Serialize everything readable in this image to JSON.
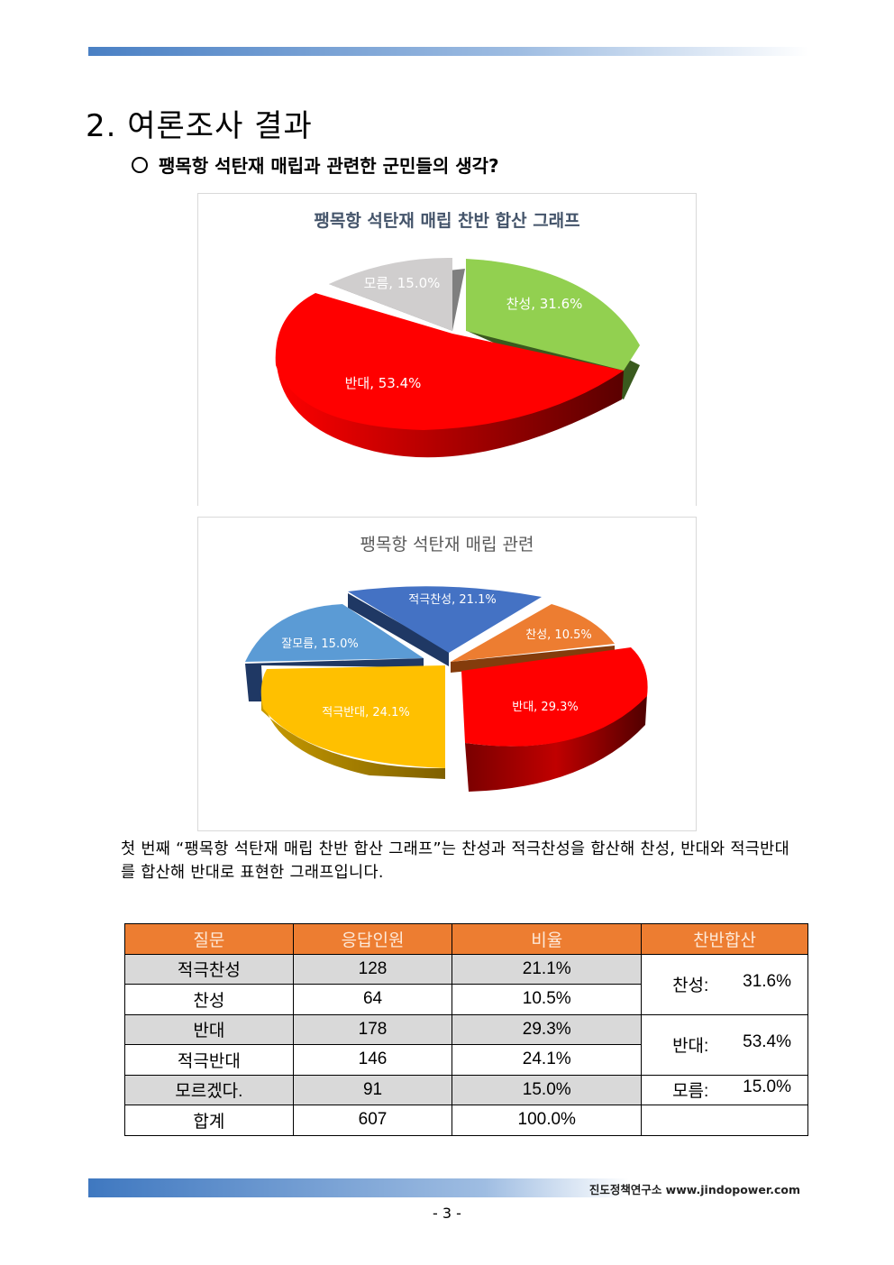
{
  "header": {
    "section_title": "2. 여론조사 결과",
    "subtitle": "팽목항 석탄재 매립과 관련한 군민들의 생각?"
  },
  "chart_data": [
    {
      "type": "pie",
      "title": "팽목항 석탄재 매립 찬반 합산 그래프",
      "categories": [
        "찬성",
        "반대",
        "모름"
      ],
      "values": [
        31.6,
        53.4,
        15.0
      ],
      "labels": [
        "찬성, 31.6%",
        "반대, 53.4%",
        "모름, 15.0%"
      ],
      "colors": [
        "#92d050",
        "#ff0000",
        "#d0cece"
      ]
    },
    {
      "type": "pie",
      "title": "팽목항 석탄재 매립 관련",
      "categories": [
        "적극찬성",
        "찬성",
        "반대",
        "적극반대",
        "잘모름"
      ],
      "values": [
        21.1,
        10.5,
        29.3,
        24.1,
        15.0
      ],
      "labels": [
        "적극찬성, 21.1%",
        "찬성, 10.5%",
        "반대, 29.3%",
        "적극반대, 24.1%",
        "잘모름, 15.0%"
      ],
      "colors": [
        "#4472c4",
        "#ed7d31",
        "#ff0000",
        "#ffc000",
        "#5b9bd5"
      ]
    }
  ],
  "paragraph": "첫 번째 “팽목항 석탄재 매립 찬반 합산 그래프”는 찬성과 적극찬성을 합산해 찬성, 반대와 적극반대를 합산해 반대로 표현한 그래프입니다.",
  "table": {
    "headers": [
      "질문",
      "응답인원",
      "비율",
      "찬반합산"
    ],
    "rows": [
      {
        "q": "적극찬성",
        "n": "128",
        "r": "21.1%"
      },
      {
        "q": "찬성",
        "n": "64",
        "r": "10.5%"
      },
      {
        "q": "반대",
        "n": "178",
        "r": "29.3%"
      },
      {
        "q": "적극반대",
        "n": "146",
        "r": "24.1%"
      },
      {
        "q": "모르겠다.",
        "n": "91",
        "r": "15.0%"
      },
      {
        "q": "합계",
        "n": "607",
        "r": "100.0%"
      }
    ],
    "sums": [
      {
        "label": "찬성:",
        "value": "31.6%"
      },
      {
        "label": "반대:",
        "value": "53.4%"
      },
      {
        "label": "모름:",
        "value": "15.0%"
      }
    ]
  },
  "footer": {
    "org": "진도정책연구소 www.jindopower.com",
    "page": "- 3 -"
  }
}
